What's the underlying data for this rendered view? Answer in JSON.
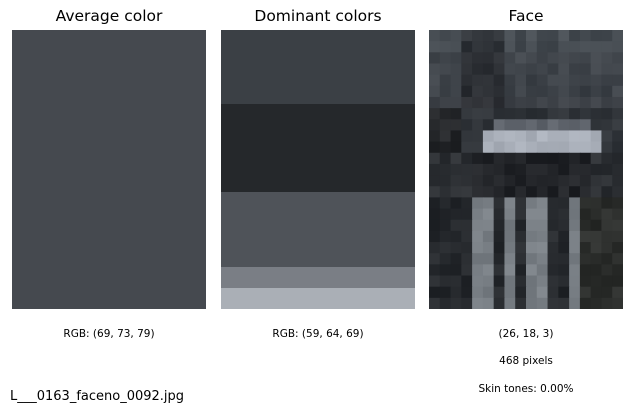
{
  "panels": {
    "average": {
      "title": "Average color",
      "color": "#45494f",
      "caption": "RGB: (69, 73, 79)"
    },
    "dominant": {
      "title": "Dominant colors",
      "caption": "RGB: (59, 64, 69)",
      "bands": [
        {
          "color": "#3b4045",
          "share": 0.265
        },
        {
          "color": "#25282b",
          "share": 0.315
        },
        {
          "color": "#4f5359",
          "share": 0.27
        },
        {
          "color": "#7a7e85",
          "share": 0.075
        },
        {
          "color": "#aaafb6",
          "share": 0.075
        }
      ]
    },
    "face": {
      "title": "Face",
      "caption_color": "(26, 18, 3)",
      "caption_pixels": "468 pixels",
      "caption_skin": "Skin tones: 0.00%"
    }
  },
  "filename": "L___0163_faceno_0092.jpg"
}
